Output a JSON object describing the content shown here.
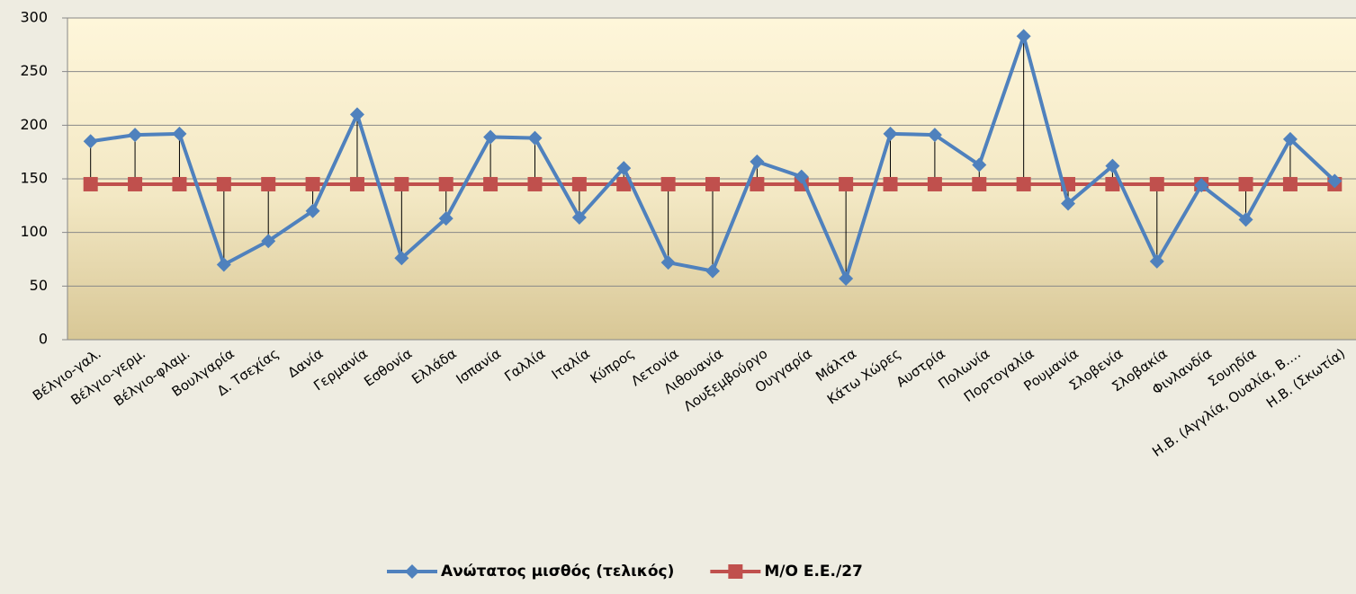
{
  "chart_data": {
    "type": "line",
    "categories": [
      "Βέλγιο-γαλ.",
      "Βέλγιο-γερμ.",
      "Βέλγιο-φλαμ.",
      "Βουλγαρία",
      "Δ. Τσεχίας",
      "Δανία",
      "Γερμανία",
      "Εσθονία",
      "Ελλάδα",
      "Ισπανία",
      "Γαλλία",
      "Ιταλία",
      "Κύπρος",
      "Λετονία",
      "Λιθουανία",
      "Λουξεμβούργο",
      "Ουγγαρία",
      "Μάλτα",
      "Κάτω Χώρες",
      "Αυστρία",
      "Πολωνία",
      "Πορτογαλία",
      "Ρουμανία",
      "Σλοβενία",
      "Σλοβακία",
      "Φινλανδία",
      "Σουηδία",
      "Η.Β. (Αγγλία, Ουαλία, Β.…",
      "Η.Β. (Σκωτία)"
    ],
    "series": [
      {
        "name": "Ανώτατος μισθός (τελικός)",
        "color": "#4f81bd",
        "marker": "diamond",
        "values": [
          185,
          191,
          192,
          70,
          92,
          120,
          210,
          76,
          113,
          189,
          188,
          114,
          160,
          72,
          64,
          166,
          152,
          57,
          192,
          191,
          163,
          283,
          127,
          162,
          73,
          144,
          112,
          187,
          148
        ]
      },
      {
        "name": "Μ/Ο Ε.Ε./27",
        "color": "#c0504d",
        "marker": "square",
        "values": [
          145,
          145,
          145,
          145,
          145,
          145,
          145,
          145,
          145,
          145,
          145,
          145,
          145,
          145,
          145,
          145,
          145,
          145,
          145,
          145,
          145,
          145,
          145,
          145,
          145,
          145,
          145,
          145,
          145
        ]
      }
    ],
    "ylim": [
      0,
      300
    ],
    "yticks": [
      0,
      50,
      100,
      150,
      200,
      250,
      300
    ],
    "grid": true,
    "drop_lines": true,
    "legend": "bottom"
  }
}
